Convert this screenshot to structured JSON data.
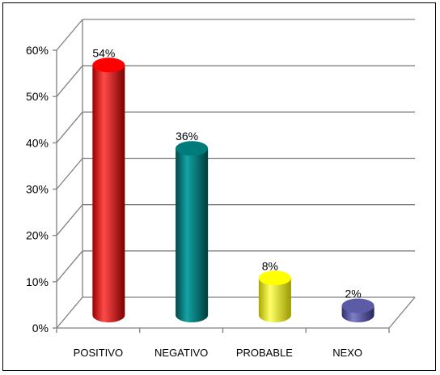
{
  "chart_data": {
    "type": "bar",
    "categories": [
      "POSITIVO",
      "NEGATIVO",
      "PROBABLE",
      "NEXO"
    ],
    "values": [
      54,
      36,
      8,
      2
    ],
    "data_labels": [
      "54%",
      "36%",
      "8%",
      "2%"
    ],
    "colors": [
      "#ff0000",
      "#007b7b",
      "#ffff00",
      "#5b5ba6"
    ],
    "yticks": [
      0,
      10,
      20,
      30,
      40,
      50,
      60
    ],
    "ytick_labels": [
      "0%",
      "10%",
      "20%",
      "30%",
      "40%",
      "50%",
      "60%"
    ],
    "ylim": [
      0,
      60
    ],
    "grid": true,
    "legend": "none",
    "style": "3d-cylinder"
  }
}
